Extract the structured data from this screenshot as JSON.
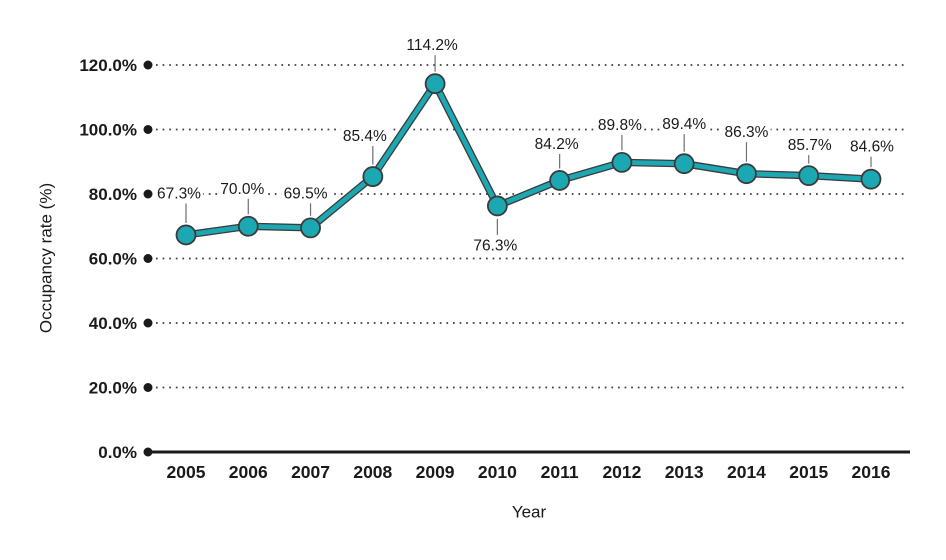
{
  "page": {
    "background": "#ffffff"
  },
  "chart_data": {
    "type": "line",
    "title": "",
    "xlabel": "Year",
    "ylabel": "Occupancy rate (%)",
    "categories": [
      "2005",
      "2006",
      "2007",
      "2008",
      "2009",
      "2010",
      "2011",
      "2012",
      "2013",
      "2014",
      "2015",
      "2016"
    ],
    "series": [
      {
        "name": "Occupancy rate",
        "values": [
          67.3,
          70.0,
          69.5,
          85.4,
          114.2,
          76.3,
          84.2,
          89.8,
          89.4,
          86.3,
          85.7,
          84.6
        ]
      }
    ],
    "point_labels": [
      "67.3%",
      "70.0%",
      "69.5%",
      "85.4%",
      "114.2%",
      "76.3%",
      "84.2%",
      "89.8%",
      "89.4%",
      "86.3%",
      "85.7%",
      "84.6%"
    ],
    "ylim": [
      0,
      120
    ],
    "ytick_values": [
      0,
      20,
      40,
      60,
      80,
      100,
      120
    ],
    "ytick_labels": [
      "0.0%",
      "20.0%",
      "40.0%",
      "60.0%",
      "80.0%",
      "100.0%",
      "120.0%"
    ],
    "grid": "horizontal-dotted",
    "legend": "none",
    "marker": "circle",
    "colors": {
      "line": "#1BA8B2",
      "outline": "#3B3B3B",
      "text": "#1A1A1A",
      "grid": "#3C3C3C",
      "leader": "#6F6F6F",
      "axis": "#1A1A1A"
    },
    "label_layout": {
      "side": [
        "above",
        "above",
        "above",
        "above",
        "above",
        "below",
        "above",
        "above",
        "above",
        "above",
        "above",
        "above"
      ],
      "dx": [
        -7,
        -6,
        -5,
        -8,
        -3,
        -2,
        -3,
        -2,
        0,
        0,
        1,
        1
      ],
      "dy": [
        -42,
        -38,
        -35,
        -41,
        -39,
        39,
        -37,
        -38,
        -40,
        -42,
        -31,
        -33
      ]
    }
  }
}
